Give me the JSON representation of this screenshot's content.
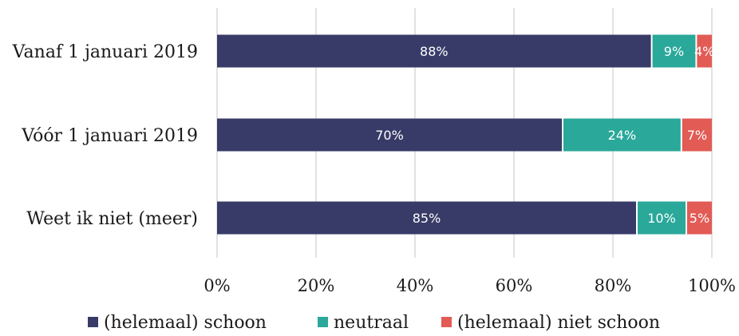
{
  "chart_data": {
    "type": "bar",
    "orientation": "horizontal",
    "stacked": true,
    "categories": [
      "Vanaf 1 januari 2019",
      "Vóór 1 januari 2019",
      "Weet ik niet (meer)"
    ],
    "series": [
      {
        "name": "(helemaal) schoon",
        "color": "#383b68",
        "values": [
          88,
          70,
          85
        ],
        "labels": [
          "88%",
          "70%",
          "85%"
        ]
      },
      {
        "name": "neutraal",
        "color": "#2aa89a",
        "values": [
          9,
          24,
          10
        ],
        "labels": [
          "9%",
          "24%",
          "10%"
        ]
      },
      {
        "name": "(helemaal) niet schoon",
        "color": "#e25b55",
        "values": [
          4,
          7,
          5
        ],
        "labels": [
          "4%",
          "7%",
          "5%"
        ]
      }
    ],
    "xlim": [
      0,
      100
    ],
    "xticks": [
      "0%",
      "20%",
      "40%",
      "60%",
      "80%",
      "100%"
    ],
    "grid": true,
    "legend_position": "bottom"
  }
}
